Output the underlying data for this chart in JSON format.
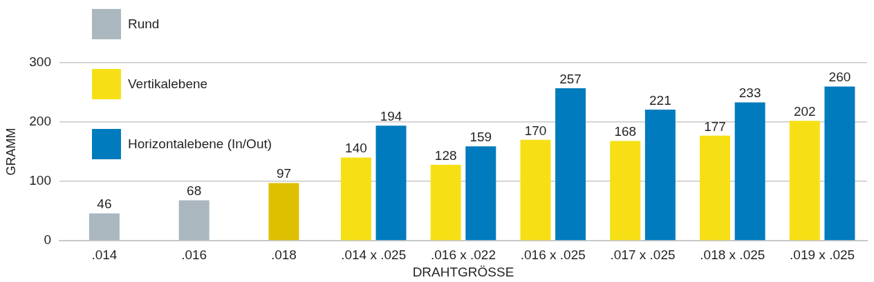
{
  "chart_data": {
    "type": "bar",
    "xlabel": "DRAHTGRÖSSE",
    "ylabel": "GRAMM",
    "categories": [
      ".014",
      ".016",
      ".018",
      ".014 x .025",
      ".016 x .022",
      ".016 x .025",
      ".017 x .025",
      ".018 x .025",
      ".019 x .025"
    ],
    "series": [
      {
        "name": "Rund",
        "color": "#aab7bf",
        "values": [
          46,
          68,
          null,
          null,
          null,
          null,
          null,
          null,
          null
        ]
      },
      {
        "name": "Vertikalebene",
        "color": "#f6e015",
        "colors": [
          "#f6e015",
          "#f6e015",
          "#dfc000",
          "#f6e015",
          "#f6e015",
          "#f6e015",
          "#f6e015",
          "#f6e015",
          "#f6e015"
        ],
        "values": [
          null,
          null,
          97,
          140,
          128,
          170,
          168,
          177,
          202
        ]
      },
      {
        "name": "Horizontalebene (In/Out)",
        "color": "#007bbd",
        "values": [
          null,
          null,
          null,
          194,
          159,
          257,
          221,
          233,
          260
        ]
      }
    ],
    "ylim": [
      0,
      300
    ],
    "yticks": [
      0,
      100,
      200,
      300
    ],
    "grid": "y",
    "legend": "top left",
    "data_labels": true
  }
}
